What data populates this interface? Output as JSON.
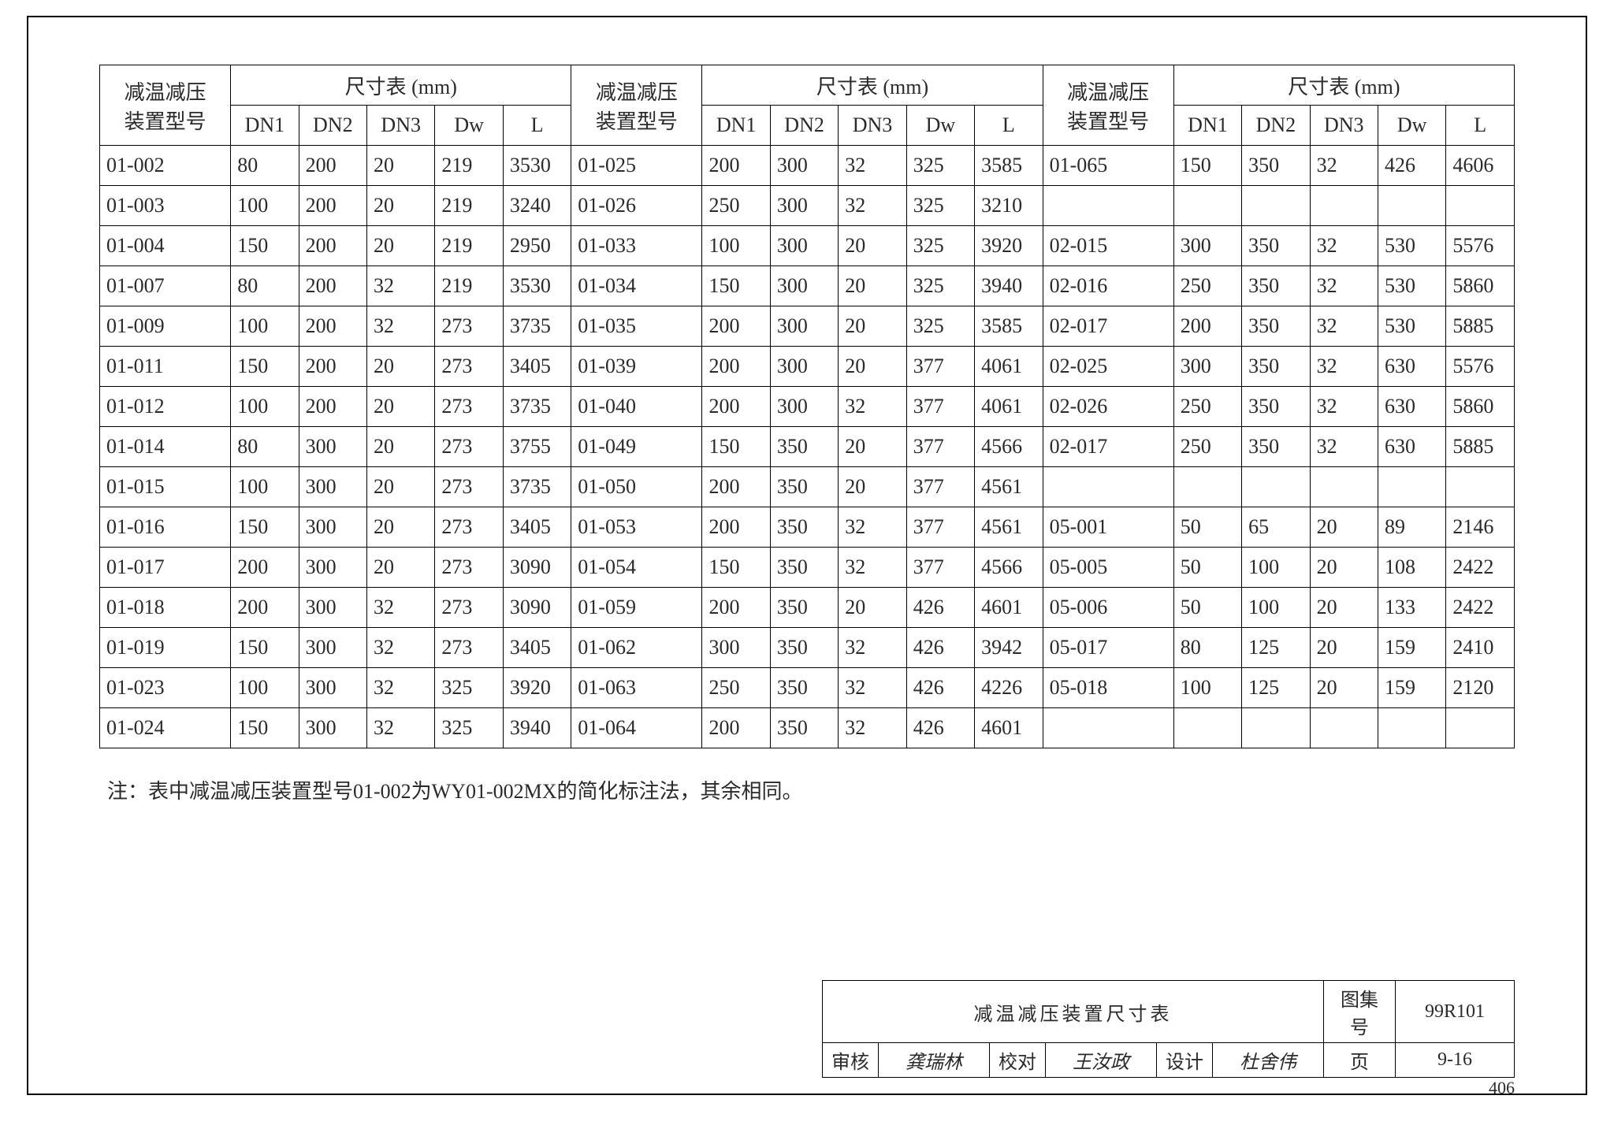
{
  "headers": {
    "model": "减温减压\n装置型号",
    "dim_group": "尺寸表 (mm)",
    "cols": [
      "DN1",
      "DN2",
      "DN3",
      "Dw",
      "L"
    ]
  },
  "groups": [
    {
      "rows": [
        [
          "01-002",
          "80",
          "200",
          "20",
          "219",
          "3530"
        ],
        [
          "01-003",
          "100",
          "200",
          "20",
          "219",
          "3240"
        ],
        [
          "01-004",
          "150",
          "200",
          "20",
          "219",
          "2950"
        ],
        [
          "01-007",
          "80",
          "200",
          "32",
          "219",
          "3530"
        ],
        [
          "01-009",
          "100",
          "200",
          "32",
          "273",
          "3735"
        ],
        [
          "01-011",
          "150",
          "200",
          "20",
          "273",
          "3405"
        ],
        [
          "01-012",
          "100",
          "200",
          "20",
          "273",
          "3735"
        ],
        [
          "01-014",
          "80",
          "300",
          "20",
          "273",
          "3755"
        ],
        [
          "01-015",
          "100",
          "300",
          "20",
          "273",
          "3735"
        ],
        [
          "01-016",
          "150",
          "300",
          "20",
          "273",
          "3405"
        ],
        [
          "01-017",
          "200",
          "300",
          "20",
          "273",
          "3090"
        ],
        [
          "01-018",
          "200",
          "300",
          "32",
          "273",
          "3090"
        ],
        [
          "01-019",
          "150",
          "300",
          "32",
          "273",
          "3405"
        ],
        [
          "01-023",
          "100",
          "300",
          "32",
          "325",
          "3920"
        ],
        [
          "01-024",
          "150",
          "300",
          "32",
          "325",
          "3940"
        ]
      ]
    },
    {
      "rows": [
        [
          "01-025",
          "200",
          "300",
          "32",
          "325",
          "3585"
        ],
        [
          "01-026",
          "250",
          "300",
          "32",
          "325",
          "3210"
        ],
        [
          "01-033",
          "100",
          "300",
          "20",
          "325",
          "3920"
        ],
        [
          "01-034",
          "150",
          "300",
          "20",
          "325",
          "3940"
        ],
        [
          "01-035",
          "200",
          "300",
          "20",
          "325",
          "3585"
        ],
        [
          "01-039",
          "200",
          "300",
          "20",
          "377",
          "4061"
        ],
        [
          "01-040",
          "200",
          "300",
          "32",
          "377",
          "4061"
        ],
        [
          "01-049",
          "150",
          "350",
          "20",
          "377",
          "4566"
        ],
        [
          "01-050",
          "200",
          "350",
          "20",
          "377",
          "4561"
        ],
        [
          "01-053",
          "200",
          "350",
          "32",
          "377",
          "4561"
        ],
        [
          "01-054",
          "150",
          "350",
          "32",
          "377",
          "4566"
        ],
        [
          "01-059",
          "200",
          "350",
          "20",
          "426",
          "4601"
        ],
        [
          "01-062",
          "300",
          "350",
          "32",
          "426",
          "3942"
        ],
        [
          "01-063",
          "250",
          "350",
          "32",
          "426",
          "4226"
        ],
        [
          "01-064",
          "200",
          "350",
          "32",
          "426",
          "4601"
        ]
      ]
    },
    {
      "rows": [
        [
          "01-065",
          "150",
          "350",
          "32",
          "426",
          "4606"
        ],
        [
          "",
          "",
          "",
          "",
          "",
          ""
        ],
        [
          "02-015",
          "300",
          "350",
          "32",
          "530",
          "5576"
        ],
        [
          "02-016",
          "250",
          "350",
          "32",
          "530",
          "5860"
        ],
        [
          "02-017",
          "200",
          "350",
          "32",
          "530",
          "5885"
        ],
        [
          "02-025",
          "300",
          "350",
          "32",
          "630",
          "5576"
        ],
        [
          "02-026",
          "250",
          "350",
          "32",
          "630",
          "5860"
        ],
        [
          "02-017",
          "250",
          "350",
          "32",
          "630",
          "5885"
        ],
        [
          "",
          "",
          "",
          "",
          "",
          ""
        ],
        [
          "05-001",
          "50",
          "65",
          "20",
          "89",
          "2146"
        ],
        [
          "05-005",
          "50",
          "100",
          "20",
          "108",
          "2422"
        ],
        [
          "05-006",
          "50",
          "100",
          "20",
          "133",
          "2422"
        ],
        [
          "05-017",
          "80",
          "125",
          "20",
          "159",
          "2410"
        ],
        [
          "05-018",
          "100",
          "125",
          "20",
          "159",
          "2120"
        ],
        [
          "",
          "",
          "",
          "",
          "",
          ""
        ]
      ]
    }
  ],
  "note": "注：表中减温减压装置型号01-002为WY01-002MX的简化标注法，其余相同。",
  "title_block": {
    "title": "减温减压装置尺寸表",
    "fig_label": "图集号",
    "fig_value": "99R101",
    "review_label": "审核",
    "review_sig": "龚瑞林",
    "check_label": "校对",
    "check_sig": "王汝政",
    "design_label": "设计",
    "design_sig": "杜舍伟",
    "page_label": "页",
    "page_value": "9-16"
  },
  "page_number": "406"
}
